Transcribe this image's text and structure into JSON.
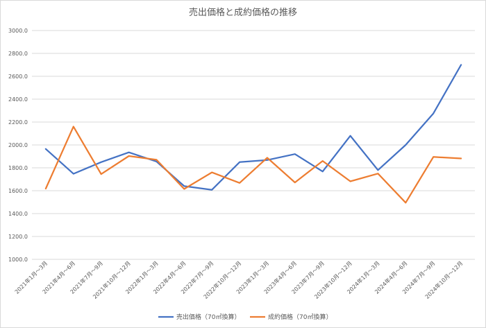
{
  "chart_data": {
    "type": "line",
    "title": "売出価格と成約価格の推移",
    "xlabel": "",
    "ylabel": "",
    "ylim": [
      1000,
      3000
    ],
    "ytick_step": 200,
    "ytick_labels": [
      "1000.0",
      "1200.0",
      "1400.0",
      "1600.0",
      "1800.0",
      "2000.0",
      "2200.0",
      "2400.0",
      "2600.0",
      "2800.0",
      "3000.0"
    ],
    "grid": true,
    "legend_position": "bottom",
    "categories": [
      "2021年1月～3月",
      "2021年4月～6月",
      "2021年7月～9月",
      "2021年10月～12月",
      "2022年1月～3月",
      "2022年4月～6月",
      "2022年7月～9月",
      "2022年10月～12月",
      "2023年1月～3月",
      "2023年4月～6月",
      "2023年7月～9月",
      "2023年10月～12月",
      "2024年1月～3月",
      "2024年4月～6月",
      "2024年7月～9月",
      "2024年10月～12月"
    ],
    "series": [
      {
        "name": "売出価格（70㎡換算）",
        "color": "#4472c4",
        "values": [
          1965,
          1748,
          1850,
          1935,
          1855,
          1640,
          1608,
          1850,
          1868,
          1920,
          1768,
          2080,
          1780,
          2000,
          2275,
          2700
        ]
      },
      {
        "name": "成約価格（70㎡換算）",
        "color": "#ed7d31",
        "values": [
          1618,
          2160,
          1745,
          1903,
          1870,
          1615,
          1760,
          1668,
          1888,
          1672,
          1860,
          1682,
          1750,
          1495,
          1895,
          1882
        ]
      }
    ]
  }
}
